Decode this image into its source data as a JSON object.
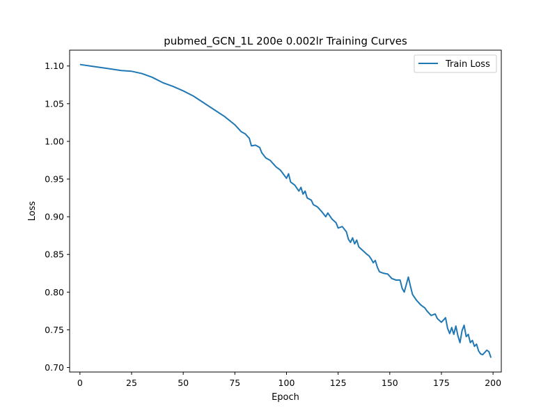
{
  "chart_data": {
    "type": "line",
    "title": "pubmed_GCN_1L  200e  0.002lr  Training Curves",
    "xlabel": "Epoch",
    "ylabel": "Loss",
    "xlim": [
      -5,
      204
    ],
    "ylim": [
      0.694,
      1.121
    ],
    "xticks": [
      0,
      25,
      50,
      75,
      100,
      125,
      150,
      175,
      200
    ],
    "yticks": [
      0.7,
      0.75,
      0.8,
      0.85,
      0.9,
      0.95,
      1.0,
      1.05,
      1.1
    ],
    "xtick_labels": [
      "0",
      "25",
      "50",
      "75",
      "100",
      "125",
      "150",
      "175",
      "200"
    ],
    "ytick_labels": [
      "0.70",
      "0.75",
      "0.80",
      "0.85",
      "0.90",
      "0.95",
      "1.00",
      "1.05",
      "1.10"
    ],
    "grid": false,
    "legend_position": "top-right",
    "colors": {
      "train_loss": "#1f77b4"
    },
    "series": [
      {
        "name": "Train Loss",
        "x": [
          0,
          5,
          10,
          15,
          20,
          25,
          30,
          35,
          40,
          45,
          50,
          55,
          60,
          65,
          70,
          75,
          78,
          80,
          82,
          83,
          85,
          87,
          88,
          90,
          92,
          95,
          97,
          100,
          101,
          102,
          104,
          106,
          107,
          108,
          109,
          110,
          112,
          113,
          115,
          117,
          119,
          120,
          122,
          124,
          125,
          127,
          129,
          130,
          131,
          132,
          133,
          134,
          135,
          137,
          139,
          140,
          141,
          142,
          143,
          144,
          145,
          147,
          149,
          151,
          153,
          155,
          156,
          157,
          158,
          159,
          160,
          161,
          162,
          163,
          165,
          167,
          168,
          170,
          172,
          173,
          175,
          177,
          178,
          179,
          180,
          181,
          182,
          183,
          184,
          185,
          186,
          187,
          188,
          189,
          190,
          191,
          192,
          193,
          194,
          195,
          196,
          197,
          198,
          199
        ],
        "values": [
          1.102,
          1.1,
          1.098,
          1.096,
          1.094,
          1.093,
          1.09,
          1.085,
          1.078,
          1.073,
          1.067,
          1.06,
          1.051,
          1.042,
          1.033,
          1.022,
          1.013,
          1.01,
          1.004,
          0.994,
          0.995,
          0.992,
          0.985,
          0.978,
          0.975,
          0.966,
          0.962,
          0.951,
          0.957,
          0.946,
          0.942,
          0.934,
          0.939,
          0.93,
          0.934,
          0.925,
          0.922,
          0.916,
          0.913,
          0.907,
          0.9,
          0.905,
          0.897,
          0.892,
          0.885,
          0.887,
          0.88,
          0.87,
          0.866,
          0.872,
          0.864,
          0.869,
          0.86,
          0.855,
          0.85,
          0.848,
          0.844,
          0.839,
          0.842,
          0.833,
          0.827,
          0.825,
          0.824,
          0.818,
          0.816,
          0.816,
          0.805,
          0.8,
          0.81,
          0.82,
          0.808,
          0.797,
          0.793,
          0.789,
          0.783,
          0.779,
          0.775,
          0.769,
          0.771,
          0.765,
          0.76,
          0.766,
          0.752,
          0.745,
          0.753,
          0.744,
          0.755,
          0.742,
          0.733,
          0.749,
          0.756,
          0.741,
          0.744,
          0.733,
          0.736,
          0.728,
          0.731,
          0.722,
          0.718,
          0.717,
          0.72,
          0.723,
          0.721,
          0.713
        ]
      }
    ]
  }
}
